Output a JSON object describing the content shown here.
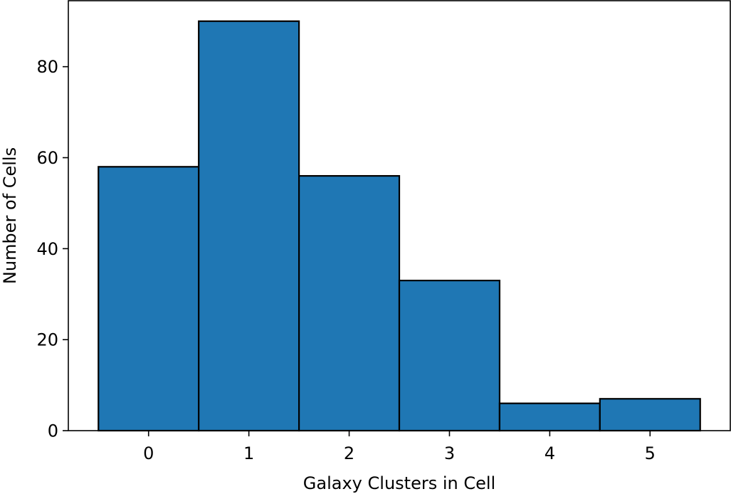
{
  "chart_data": {
    "type": "bar",
    "title": "",
    "xlabel": "Galaxy Clusters in Cell",
    "ylabel": "Number of Cells",
    "categories": [
      "0",
      "1",
      "2",
      "3",
      "4",
      "5"
    ],
    "values": [
      58,
      90,
      56,
      33,
      6,
      7
    ],
    "xlim": [
      -0.8,
      5.8
    ],
    "ylim": [
      0,
      94.5
    ],
    "yticks": [
      0,
      20,
      40,
      60,
      80
    ],
    "xticks": [
      0,
      1,
      2,
      3,
      4,
      5
    ],
    "grid": false,
    "legend": "none",
    "bar_color": "#1f77b4",
    "edge_color": "#000000"
  }
}
